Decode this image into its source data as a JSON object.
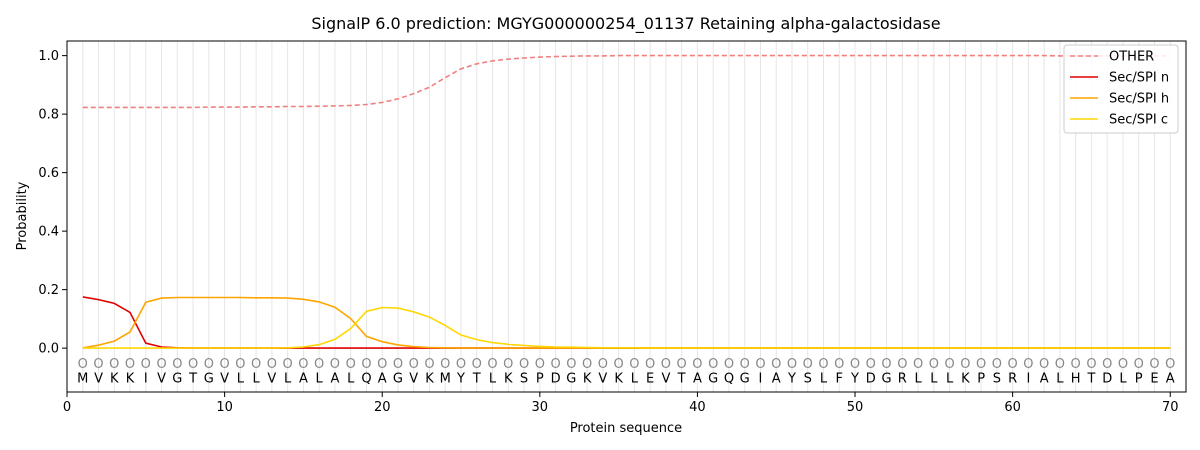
{
  "chart_data": {
    "type": "line",
    "title": "SignalP 6.0 prediction: MGYG000000254_01137 Retaining alpha-galactosidase",
    "xlabel": "Protein sequence",
    "ylabel": "Probability",
    "xlim": [
      0,
      71
    ],
    "ylim": [
      -0.15,
      1.05
    ],
    "xticks": [
      0,
      10,
      20,
      30,
      40,
      50,
      60,
      70
    ],
    "yticks": [
      "0.0",
      "0.2",
      "0.4",
      "0.6",
      "0.8",
      "1.0"
    ],
    "grid": "vertical lines at each residue",
    "legend_position": "top-right",
    "sequence": [
      "M",
      "V",
      "K",
      "K",
      "I",
      "V",
      "G",
      "T",
      "G",
      "V",
      "L",
      "L",
      "V",
      "L",
      "A",
      "L",
      "A",
      "L",
      "Q",
      "A",
      "G",
      "V",
      "K",
      "M",
      "Y",
      "T",
      "L",
      "K",
      "S",
      "P",
      "D",
      "G",
      "K",
      "V",
      "K",
      "L",
      "E",
      "V",
      "T",
      "A",
      "G",
      "Q",
      "G",
      "I",
      "A",
      "Y",
      "S",
      "L",
      "F",
      "Y",
      "D",
      "G",
      "R",
      "L",
      "L",
      "L",
      "K",
      "P",
      "S",
      "R",
      "I",
      "A",
      "L",
      "H",
      "T",
      "D",
      "L",
      "P",
      "E",
      "A"
    ],
    "sequence_marker": "O",
    "series": [
      {
        "name": "OTHER",
        "color": "#f08080",
        "dash": true,
        "values": [
          0.823,
          0.823,
          0.823,
          0.823,
          0.823,
          0.823,
          0.823,
          0.823,
          0.824,
          0.824,
          0.824,
          0.825,
          0.825,
          0.826,
          0.826,
          0.827,
          0.828,
          0.83,
          0.833,
          0.84,
          0.852,
          0.87,
          0.892,
          0.925,
          0.955,
          0.972,
          0.982,
          0.988,
          0.992,
          0.995,
          0.997,
          0.998,
          0.999,
          0.999,
          1.0,
          1.0,
          1.0,
          1.0,
          1.0,
          1.0,
          1.0,
          1.0,
          1.0,
          1.0,
          1.0,
          1.0,
          1.0,
          1.0,
          1.0,
          1.0,
          1.0,
          1.0,
          1.0,
          1.0,
          1.0,
          1.0,
          1.0,
          1.0,
          1.0,
          1.0,
          1.0,
          1.0,
          0.999,
          0.999,
          0.999,
          0.999,
          0.999,
          0.999,
          0.999,
          0.999
        ]
      },
      {
        "name": "Sec/SPI n",
        "color": "#e00000",
        "dash": false,
        "values": [
          0.175,
          0.166,
          0.153,
          0.122,
          0.017,
          0.004,
          0.001,
          0,
          0,
          0,
          0,
          0,
          0,
          0,
          0,
          0,
          0,
          0,
          0,
          0,
          0,
          0,
          0,
          0,
          0,
          0,
          0,
          0,
          0,
          0,
          0,
          0,
          0,
          0,
          0,
          0,
          0,
          0,
          0,
          0,
          0,
          0,
          0,
          0,
          0,
          0,
          0,
          0,
          0,
          0,
          0,
          0,
          0,
          0,
          0,
          0,
          0,
          0,
          0,
          0,
          0,
          0,
          0,
          0,
          0,
          0,
          0,
          0,
          0,
          0
        ]
      },
      {
        "name": "Sec/SPI h",
        "color": "#ffa500",
        "dash": false,
        "values": [
          0.001,
          0.01,
          0.024,
          0.055,
          0.157,
          0.171,
          0.173,
          0.173,
          0.173,
          0.173,
          0.173,
          0.172,
          0.172,
          0.171,
          0.167,
          0.158,
          0.14,
          0.101,
          0.04,
          0.022,
          0.011,
          0.005,
          0.002,
          0.001,
          0,
          0,
          0,
          0,
          0,
          0,
          0,
          0,
          0,
          0,
          0,
          0,
          0,
          0,
          0,
          0,
          0,
          0,
          0,
          0,
          0,
          0,
          0,
          0,
          0,
          0,
          0,
          0,
          0,
          0,
          0,
          0,
          0,
          0,
          0,
          0,
          0,
          0,
          0,
          0,
          0,
          0,
          0,
          0,
          0,
          0
        ]
      },
      {
        "name": "Sec/SPI c",
        "color": "#ffd700",
        "dash": false,
        "values": [
          0,
          0,
          0,
          0,
          0,
          0,
          0,
          0,
          0,
          0,
          0,
          0,
          0,
          0.001,
          0.004,
          0.012,
          0.03,
          0.067,
          0.126,
          0.139,
          0.137,
          0.124,
          0.106,
          0.077,
          0.045,
          0.029,
          0.019,
          0.013,
          0.009,
          0.006,
          0.004,
          0.003,
          0.002,
          0.001,
          0.001,
          0.001,
          0,
          0,
          0,
          0,
          0,
          0,
          0,
          0,
          0,
          0,
          0,
          0,
          0,
          0,
          0,
          0,
          0,
          0,
          0,
          0,
          0,
          0,
          0,
          0,
          0,
          0,
          0,
          0,
          0,
          0,
          0,
          0,
          0,
          0
        ]
      }
    ]
  }
}
